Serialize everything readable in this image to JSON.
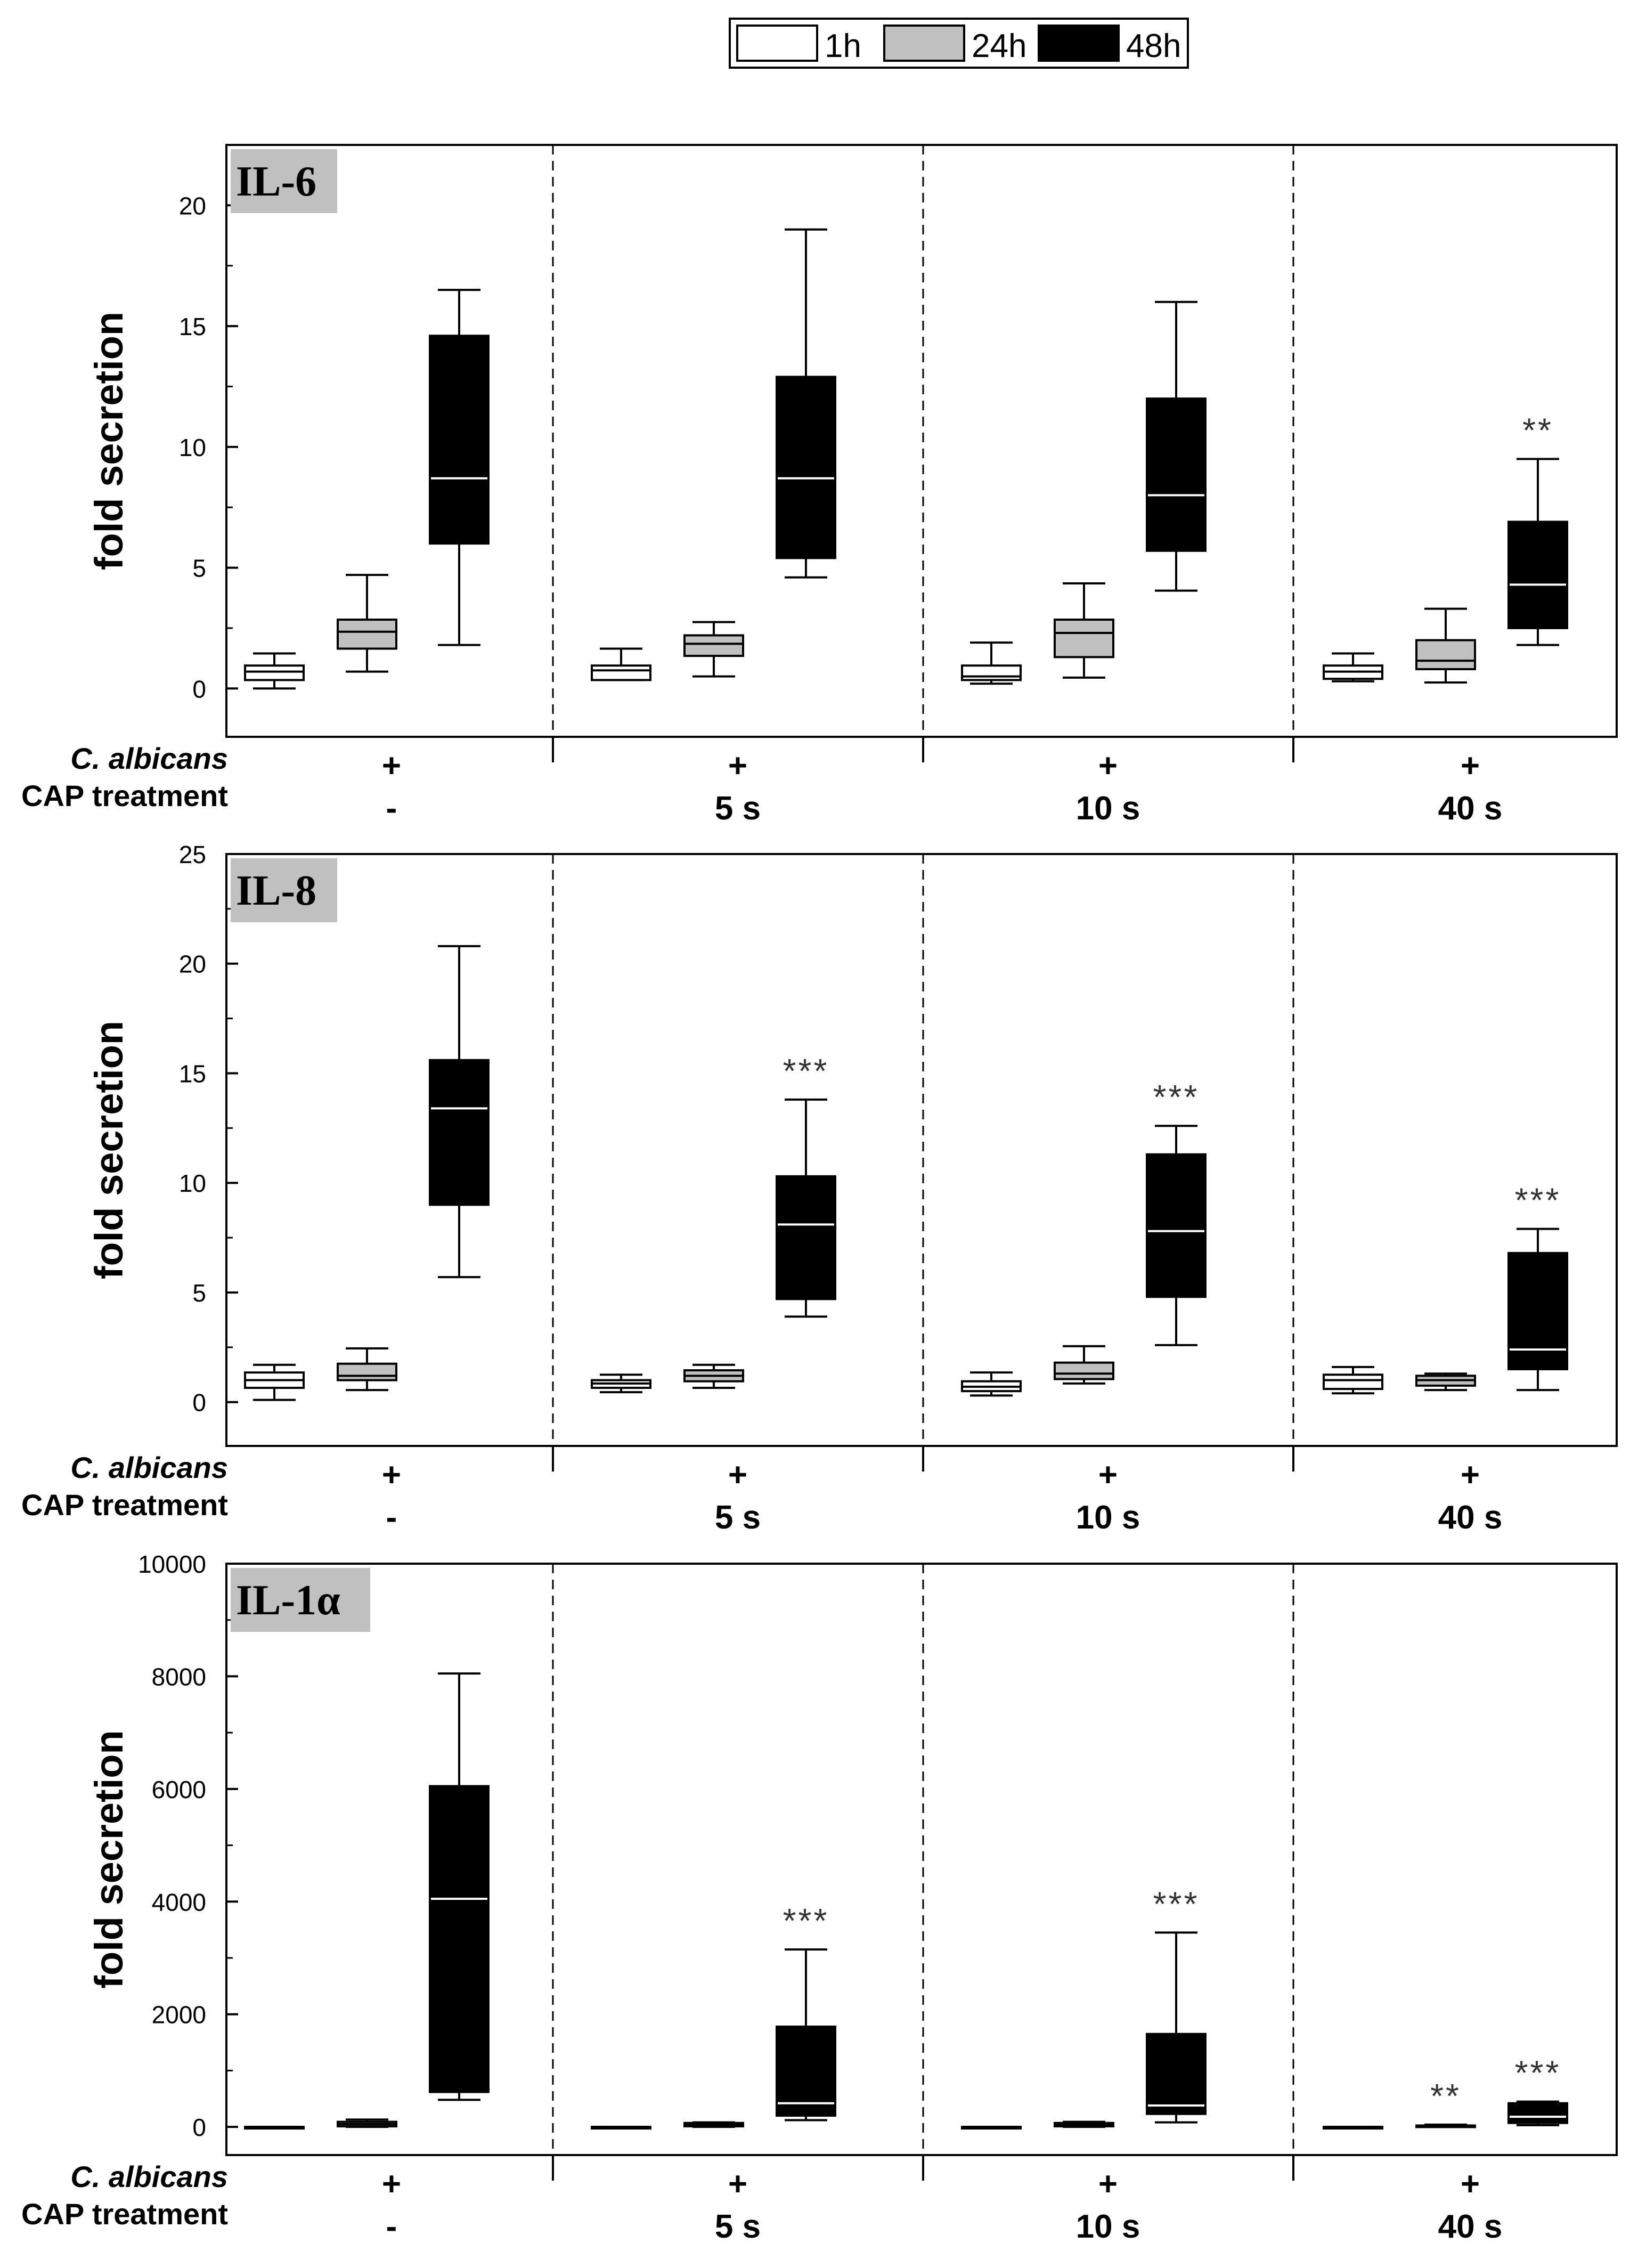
{
  "legend": {
    "entries": [
      {
        "label": "1h",
        "color": "#ffffff"
      },
      {
        "label": "24h",
        "color": "#c0c0c0"
      },
      {
        "label": "48h",
        "color": "#000000"
      }
    ]
  },
  "colors": {
    "frame": "#000000",
    "median_on_dark": "#ffffff",
    "median_on_light": "#000000",
    "label_box": "#c0c0c0",
    "significance": "#333333"
  },
  "chart_data": [
    {
      "type": "box",
      "title": "IL-6",
      "ylabel": "fold secretion",
      "ylim": [
        -2,
        22.5
      ],
      "yticks": [
        0,
        5,
        10,
        15,
        20
      ],
      "groups": [
        {
          "treatment": "-",
          "albicans": "+",
          "boxes": [
            {
              "series": "1h",
              "min": 0,
              "q1": 0.35,
              "median": 0.7,
              "q3": 0.95,
              "max": 1.45
            },
            {
              "series": "24h",
              "min": 0.7,
              "q1": 1.65,
              "median": 2.35,
              "q3": 2.85,
              "max": 4.7
            },
            {
              "series": "48h",
              "min": 1.8,
              "q1": 6.0,
              "median": 8.7,
              "q3": 14.6,
              "max": 16.5
            }
          ],
          "sig": [
            "",
            "",
            ""
          ]
        },
        {
          "treatment": "5 s",
          "albicans": "+",
          "boxes": [
            {
              "series": "1h",
              "min": 0.35,
              "q1": 0.35,
              "median": 0.75,
              "q3": 0.95,
              "max": 1.65
            },
            {
              "series": "24h",
              "min": 0.5,
              "q1": 1.35,
              "median": 1.85,
              "q3": 2.2,
              "max": 2.75
            },
            {
              "series": "48h",
              "min": 4.6,
              "q1": 5.4,
              "median": 8.7,
              "q3": 12.9,
              "max": 19.0
            }
          ],
          "sig": [
            "",
            "",
            ""
          ]
        },
        {
          "treatment": "10 s",
          "albicans": "+",
          "boxes": [
            {
              "series": "1h",
              "min": 0.2,
              "q1": 0.35,
              "median": 0.5,
              "q3": 0.95,
              "max": 1.9
            },
            {
              "series": "24h",
              "min": 0.45,
              "q1": 1.3,
              "median": 2.3,
              "q3": 2.85,
              "max": 4.35
            },
            {
              "series": "48h",
              "min": 4.05,
              "q1": 5.7,
              "median": 8.0,
              "q3": 12.0,
              "max": 16.0
            }
          ],
          "sig": [
            "",
            "",
            ""
          ]
        },
        {
          "treatment": "40 s",
          "albicans": "+",
          "boxes": [
            {
              "series": "1h",
              "min": 0.3,
              "q1": 0.4,
              "median": 0.7,
              "q3": 0.95,
              "max": 1.45
            },
            {
              "series": "24h",
              "min": 0.25,
              "q1": 0.8,
              "median": 1.15,
              "q3": 2.0,
              "max": 3.3
            },
            {
              "series": "48h",
              "min": 1.8,
              "q1": 2.5,
              "median": 4.3,
              "q3": 6.9,
              "max": 9.5
            }
          ],
          "sig": [
            "",
            "",
            "**"
          ]
        }
      ]
    },
    {
      "type": "box",
      "title": "IL-8",
      "ylabel": "fold secretion",
      "ylim": [
        -2,
        25
      ],
      "yticks": [
        0,
        5,
        10,
        15,
        20,
        25
      ],
      "groups": [
        {
          "treatment": "-",
          "albicans": "+",
          "boxes": [
            {
              "series": "1h",
              "min": 0.1,
              "q1": 0.65,
              "median": 1.0,
              "q3": 1.35,
              "max": 1.7
            },
            {
              "series": "24h",
              "min": 0.55,
              "q1": 1.0,
              "median": 1.2,
              "q3": 1.75,
              "max": 2.45
            },
            {
              "series": "48h",
              "min": 5.7,
              "q1": 9.0,
              "median": 13.4,
              "q3": 15.6,
              "max": 20.8
            }
          ],
          "sig": [
            "",
            "",
            ""
          ]
        },
        {
          "treatment": "5 s",
          "albicans": "+",
          "boxes": [
            {
              "series": "1h",
              "min": 0.45,
              "q1": 0.65,
              "median": 0.85,
              "q3": 1.0,
              "max": 1.25
            },
            {
              "series": "24h",
              "min": 0.65,
              "q1": 0.95,
              "median": 1.2,
              "q3": 1.45,
              "max": 1.7
            },
            {
              "series": "48h",
              "min": 3.9,
              "q1": 4.7,
              "median": 8.1,
              "q3": 10.3,
              "max": 13.8
            }
          ],
          "sig": [
            "",
            "",
            "***"
          ]
        },
        {
          "treatment": "10 s",
          "albicans": "+",
          "boxes": [
            {
              "series": "1h",
              "min": 0.3,
              "q1": 0.5,
              "median": 0.7,
              "q3": 0.95,
              "max": 1.35
            },
            {
              "series": "24h",
              "min": 0.85,
              "q1": 1.05,
              "median": 1.3,
              "q3": 1.8,
              "max": 2.55
            },
            {
              "series": "48h",
              "min": 2.6,
              "q1": 4.8,
              "median": 7.8,
              "q3": 11.3,
              "max": 12.6
            }
          ],
          "sig": [
            "",
            "",
            "***"
          ]
        },
        {
          "treatment": "40 s",
          "albicans": "+",
          "boxes": [
            {
              "series": "1h",
              "min": 0.4,
              "q1": 0.6,
              "median": 1.0,
              "q3": 1.25,
              "max": 1.6
            },
            {
              "series": "24h",
              "min": 0.55,
              "q1": 0.75,
              "median": 1.0,
              "q3": 1.2,
              "max": 1.3
            },
            {
              "series": "48h",
              "min": 0.55,
              "q1": 1.5,
              "median": 2.4,
              "q3": 6.8,
              "max": 7.9
            }
          ],
          "sig": [
            "",
            "",
            "***"
          ]
        }
      ]
    },
    {
      "type": "box",
      "title": "IL-1α",
      "ylabel": "fold secretion",
      "ylim": [
        -500,
        10000
      ],
      "yticks": [
        0,
        2000,
        4000,
        6000,
        8000,
        10000
      ],
      "groups": [
        {
          "treatment": "-",
          "albicans": "+",
          "boxes": [
            {
              "series": "1h",
              "min": 0,
              "q1": 0,
              "median": 0,
              "q3": 0,
              "max": 0
            },
            {
              "series": "24h",
              "min": 0,
              "q1": 10,
              "median": 50,
              "q3": 90,
              "max": 130
            },
            {
              "series": "48h",
              "min": 480,
              "q1": 620,
              "median": 4050,
              "q3": 6050,
              "max": 8050
            }
          ],
          "sig": [
            "",
            "",
            ""
          ]
        },
        {
          "treatment": "5 s",
          "albicans": "+",
          "boxes": [
            {
              "series": "1h",
              "min": 0,
              "q1": 0,
              "median": 0,
              "q3": 0,
              "max": 0
            },
            {
              "series": "24h",
              "min": 0,
              "q1": 10,
              "median": 40,
              "q3": 70,
              "max": 80
            },
            {
              "series": "48h",
              "min": 120,
              "q1": 200,
              "median": 420,
              "q3": 1780,
              "max": 3150
            }
          ],
          "sig": [
            "",
            "",
            "***"
          ]
        },
        {
          "treatment": "10 s",
          "albicans": "+",
          "boxes": [
            {
              "series": "1h",
              "min": 0,
              "q1": 0,
              "median": 0,
              "q3": 0,
              "max": 0
            },
            {
              "series": "24h",
              "min": 0,
              "q1": 10,
              "median": 40,
              "q3": 70,
              "max": 90
            },
            {
              "series": "48h",
              "min": 80,
              "q1": 230,
              "median": 380,
              "q3": 1650,
              "max": 3450
            }
          ],
          "sig": [
            "",
            "",
            "***"
          ]
        },
        {
          "treatment": "40 s",
          "albicans": "+",
          "boxes": [
            {
              "series": "1h",
              "min": 0,
              "q1": 0,
              "median": 0,
              "q3": 0,
              "max": 0
            },
            {
              "series": "24h",
              "min": 0,
              "q1": 5,
              "median": 15,
              "q3": 25,
              "max": 40
            },
            {
              "series": "48h",
              "min": 30,
              "q1": 70,
              "median": 180,
              "q3": 420,
              "max": 450
            }
          ],
          "sig": [
            "",
            "**",
            "***"
          ]
        }
      ]
    }
  ],
  "row_labels": {
    "albicans": "C. albicans",
    "treatment": "CAP treatment"
  }
}
